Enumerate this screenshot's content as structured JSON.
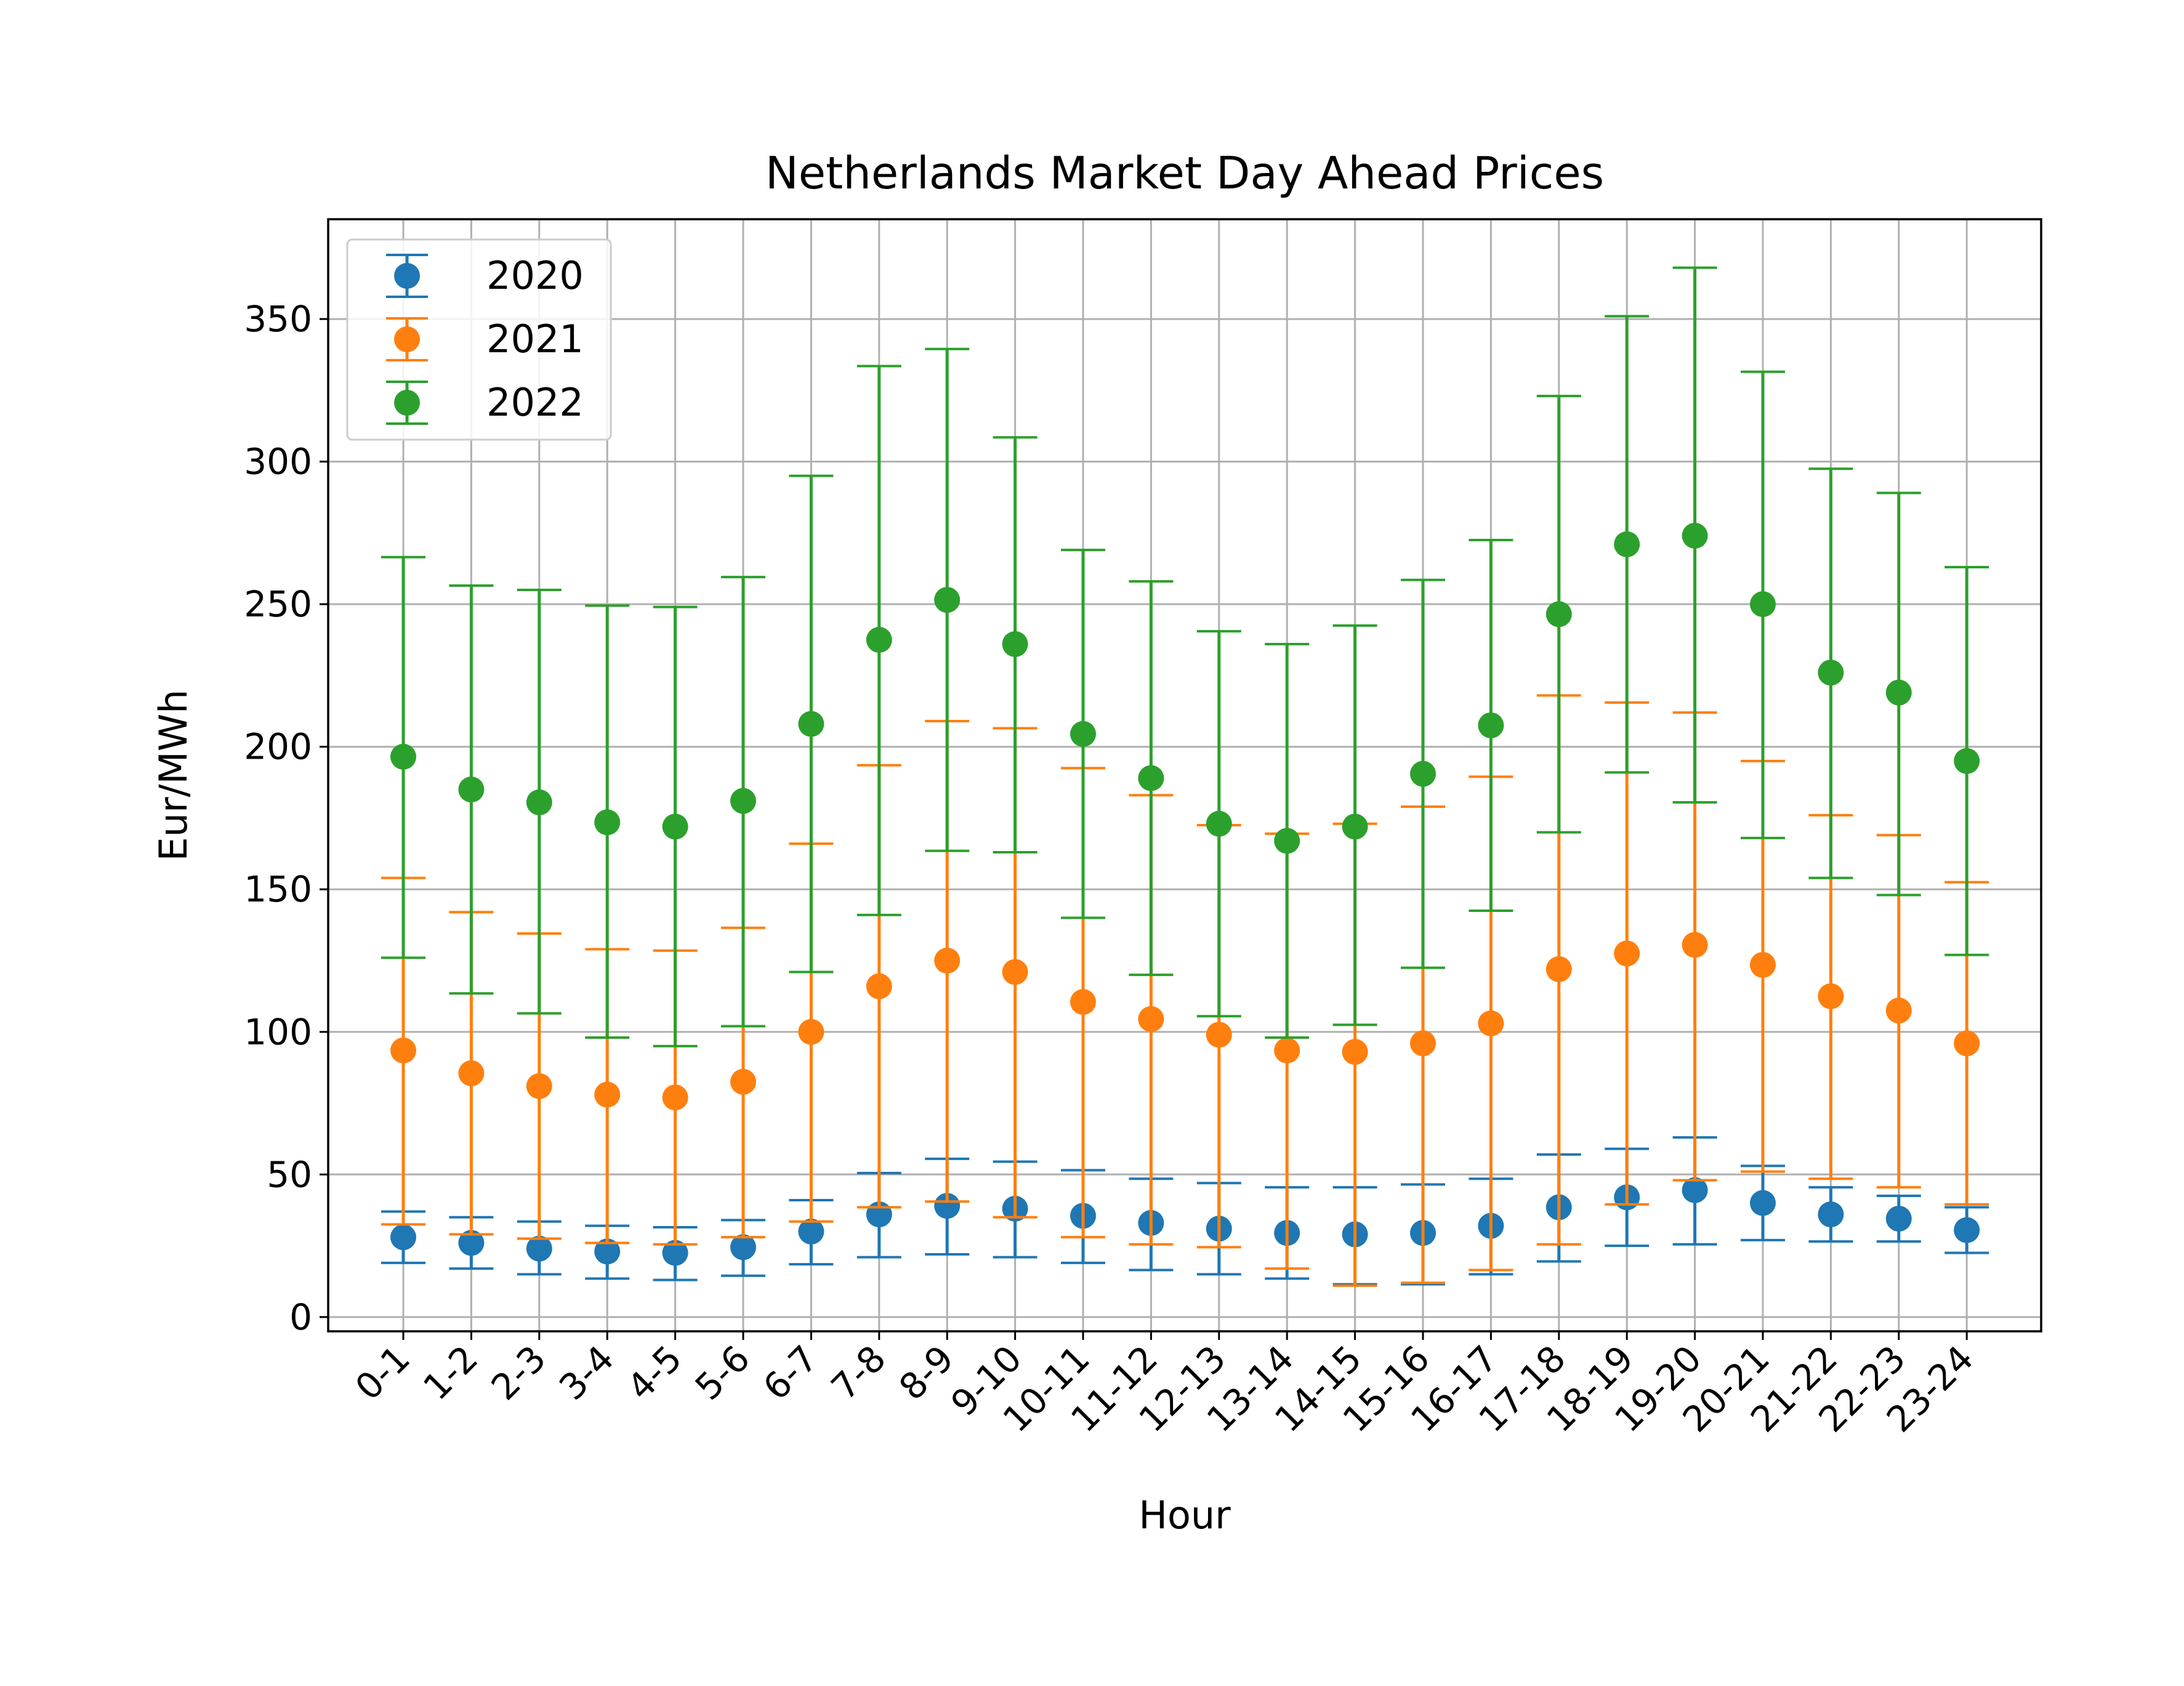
{
  "chart_data": {
    "type": "errorbar",
    "title": "Netherlands Market Day Ahead Prices",
    "xlabel": "Hour",
    "ylabel": "Eur/MWh",
    "ylim": [
      -5,
      385
    ],
    "yticks": [
      0,
      50,
      100,
      150,
      200,
      250,
      300,
      350
    ],
    "grid": true,
    "legend_position": "upper-left",
    "categories": [
      "0-1",
      "1-2",
      "2-3",
      "3-4",
      "4-5",
      "5-6",
      "6-7",
      "7-8",
      "8-9",
      "9-10",
      "10-11",
      "11-12",
      "12-13",
      "13-14",
      "14-15",
      "15-16",
      "16-17",
      "17-18",
      "18-19",
      "19-20",
      "20-21",
      "21-22",
      "22-23",
      "23-24"
    ],
    "series": [
      {
        "name": "2020",
        "color": "#1f77b4",
        "values": [
          28,
          26,
          24,
          23,
          22.5,
          24.5,
          30,
          36,
          39,
          38,
          35.5,
          33,
          31,
          29.5,
          29,
          29.5,
          32,
          38.5,
          42,
          44.5,
          40,
          36,
          34.5,
          30.5
        ],
        "lower": [
          19,
          17,
          15,
          13.5,
          13,
          14.5,
          18.5,
          21,
          22,
          21,
          19,
          16.5,
          15,
          13.5,
          11.5,
          11.5,
          15,
          19.5,
          25,
          25.5,
          27,
          26.5,
          26.5,
          22.5
        ],
        "upper": [
          37,
          35,
          33.5,
          32,
          31.5,
          34,
          41,
          50.5,
          55.5,
          54.5,
          51.5,
          48.5,
          47,
          45.5,
          45.5,
          46.5,
          48.5,
          57,
          59,
          63,
          53,
          45.5,
          42.5,
          38.5
        ]
      },
      {
        "name": "2021",
        "color": "#ff7f0e",
        "values": [
          93.5,
          85.5,
          81,
          78,
          77,
          82.5,
          100,
          116,
          125,
          121,
          110.5,
          104.5,
          99,
          93.5,
          93,
          96,
          103,
          122,
          127.5,
          130.5,
          123.5,
          112.5,
          107.5,
          96
        ],
        "lower": [
          32.5,
          29,
          27.5,
          26,
          25.5,
          28,
          33.5,
          38.5,
          40.5,
          35,
          28,
          25.5,
          24.5,
          17,
          11,
          12,
          16.5,
          25.5,
          39.5,
          48,
          51,
          48.5,
          45.5,
          39.5
        ],
        "upper": [
          154,
          142,
          134.5,
          129,
          128.5,
          136.5,
          166,
          193.5,
          209,
          206.5,
          192.5,
          183,
          172.5,
          169.5,
          173,
          179,
          189.5,
          218,
          215.5,
          212,
          195,
          176,
          169,
          152.5
        ]
      },
      {
        "name": "2022",
        "color": "#2ca02c",
        "values": [
          196.5,
          185,
          180.5,
          173.5,
          172,
          181,
          208,
          237.5,
          251.5,
          236,
          204.5,
          189,
          173,
          167,
          172,
          190.5,
          207.5,
          246.5,
          271,
          274,
          250,
          226,
          219,
          195
        ],
        "lower": [
          126,
          113.5,
          106.5,
          98,
          95,
          102,
          121,
          141,
          163.5,
          163,
          140,
          120,
          105.5,
          98,
          102.5,
          122.5,
          142.5,
          170,
          191,
          180.5,
          168,
          154,
          148,
          127
        ],
        "upper": [
          266.5,
          256.5,
          255,
          249.5,
          249,
          259.5,
          295,
          333.5,
          339.5,
          308.5,
          269,
          258,
          240.5,
          236,
          242.5,
          258.5,
          272.5,
          323,
          351,
          368,
          331.5,
          297.5,
          289,
          263
        ]
      }
    ]
  }
}
